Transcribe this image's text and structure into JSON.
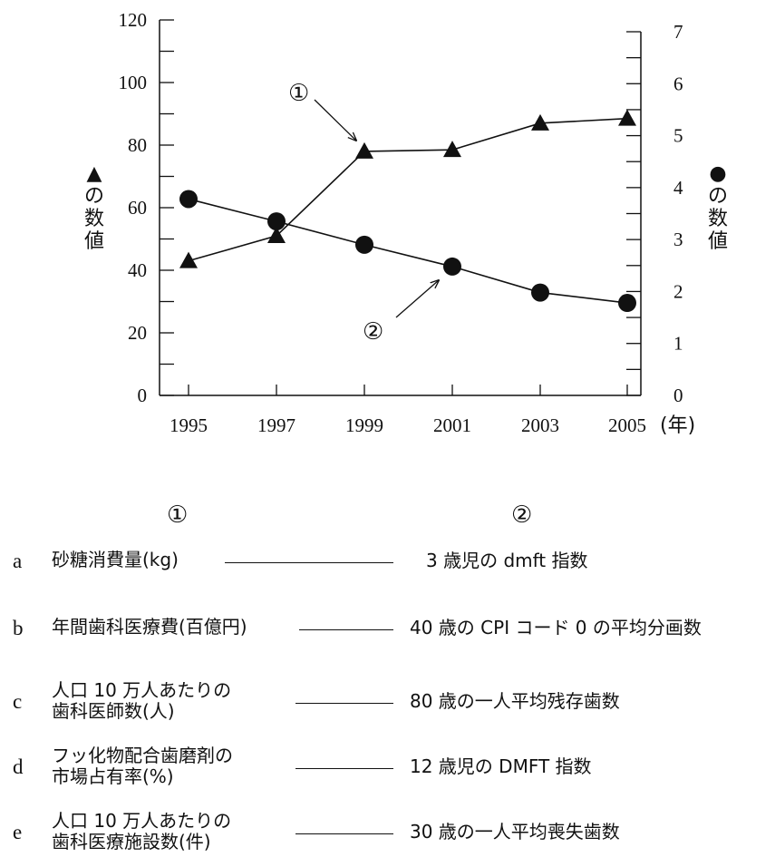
{
  "chart_data": {
    "type": "line",
    "x": [
      1995,
      1997,
      1999,
      2001,
      2003,
      2005
    ],
    "x_unit": "(年)",
    "y_left": {
      "label_chars": [
        "▲",
        "の",
        "数",
        "値"
      ],
      "ylim": [
        0,
        120
      ],
      "ticks": [
        0,
        20,
        40,
        60,
        80,
        100,
        120
      ]
    },
    "y_right": {
      "label_chars": [
        "●",
        "の",
        "数",
        "値"
      ],
      "ylim": [
        0,
        7
      ],
      "ticks": [
        0,
        1,
        2,
        3,
        4,
        5,
        6,
        7
      ]
    },
    "series": [
      {
        "marker": "triangle",
        "axis": "left",
        "callout": "①",
        "values": [
          43,
          51,
          78,
          78.5,
          87,
          88.5
        ]
      },
      {
        "marker": "circle",
        "axis": "right",
        "callout": "②",
        "values": [
          3.78,
          3.35,
          2.9,
          2.48,
          1.98,
          1.78
        ]
      }
    ]
  },
  "table": {
    "header_left": "①",
    "header_right": "②",
    "rows": [
      {
        "letter": "a",
        "left": [
          "砂糖消費量(kg)"
        ],
        "right": "3 歳児の dmft 指数"
      },
      {
        "letter": "b",
        "left": [
          "年間歯科医療費(百億円)"
        ],
        "right": "40 歳の CPI コード 0 の平均分画数"
      },
      {
        "letter": "c",
        "left": [
          "人口 10 万人あたりの",
          "歯科医師数(人)"
        ],
        "right": "80 歳の一人平均残存歯数"
      },
      {
        "letter": "d",
        "left": [
          "フッ化物配合歯磨剤の",
          "市場占有率(%)"
        ],
        "right": "12 歳児の DMFT 指数"
      },
      {
        "letter": "e",
        "left": [
          "人口 10 万人あたりの",
          "歯科医療施設数(件)"
        ],
        "right": "30 歳の一人平均喪失歯数"
      }
    ]
  }
}
